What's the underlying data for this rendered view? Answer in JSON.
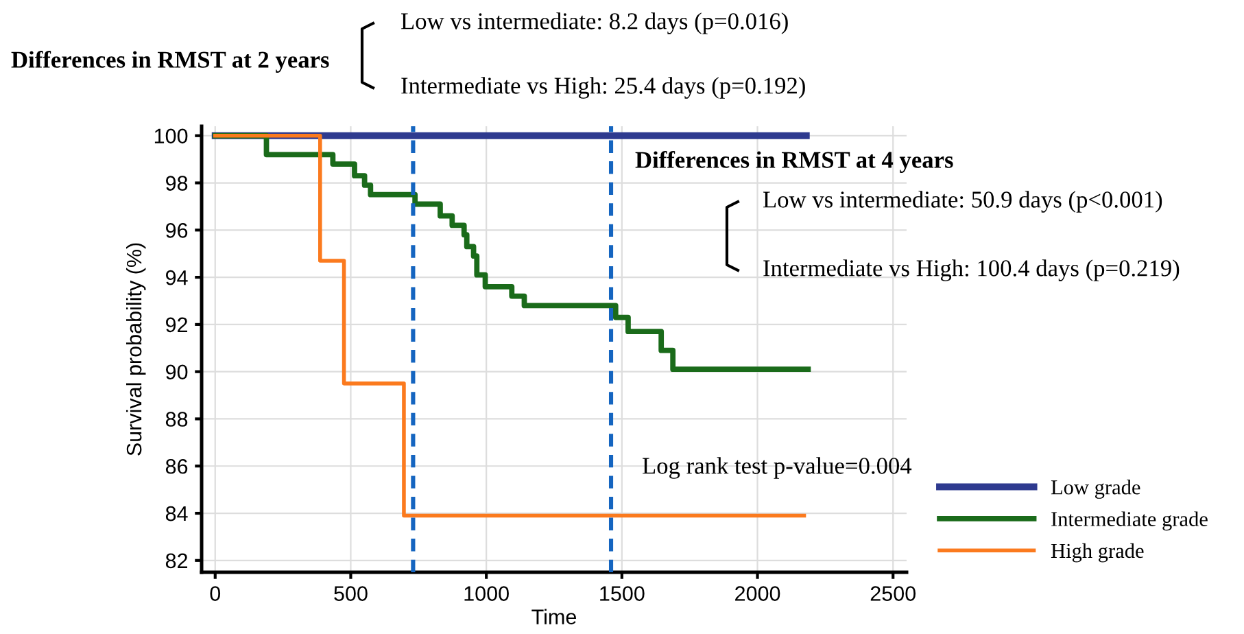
{
  "chart_data": {
    "type": "step",
    "xlabel": "Time",
    "ylabel": "Survival probability (%)",
    "xlim": [
      -50,
      2550
    ],
    "xticks": [
      0,
      500,
      1000,
      1500,
      2000,
      2500
    ],
    "ylim": [
      81.5,
      100.4
    ],
    "yticks": [
      82,
      84,
      86,
      88,
      90,
      92,
      94,
      96,
      98,
      100
    ],
    "grid": true,
    "legend": "bottom right",
    "series": [
      {
        "name": "Low grade",
        "color": "#2e3a8f",
        "x": [
          0,
          2180
        ],
        "values": [
          100,
          100
        ]
      },
      {
        "name": "Intermediate grade",
        "color": "#1a6b1a",
        "x": [
          0,
          189,
          434,
          514,
          551,
          573,
          737,
          830,
          874,
          918,
          928,
          953,
          965,
          996,
          1094,
          1140,
          1477,
          1523,
          1645,
          1688,
          2187
        ],
        "values": [
          100,
          99.2,
          98.8,
          98.3,
          97.9,
          97.5,
          97.1,
          96.6,
          96.2,
          95.8,
          95.3,
          94.9,
          94.1,
          93.6,
          93.2,
          92.8,
          92.3,
          91.7,
          90.9,
          90.1,
          90.1
        ]
      },
      {
        "name": "High grade",
        "color": "#fb7a1e",
        "x": [
          0,
          387,
          475,
          696,
          2172
        ],
        "values": [
          100,
          94.7,
          89.5,
          83.9,
          83.9
        ]
      }
    ],
    "ref_lines": [
      {
        "axis": "x",
        "value": 730,
        "color": "#1565c0",
        "line_style": "dashed"
      },
      {
        "axis": "x",
        "value": 1460,
        "color": "#1565c0",
        "line_style": "dashed"
      }
    ],
    "annotations": [
      "Differences in RMST at 2 years",
      "Low vs intermediate: 8.2 days (p=0.016)",
      "Intermediate vs High: 25.4 days (p=0.192)",
      "Differences in RMST at 4 years",
      "Low vs intermediate: 50.9 days (p<0.001)",
      "Intermediate vs High: 100.4 days (p=0.219)",
      "Log rank test p-value=0.004"
    ]
  }
}
